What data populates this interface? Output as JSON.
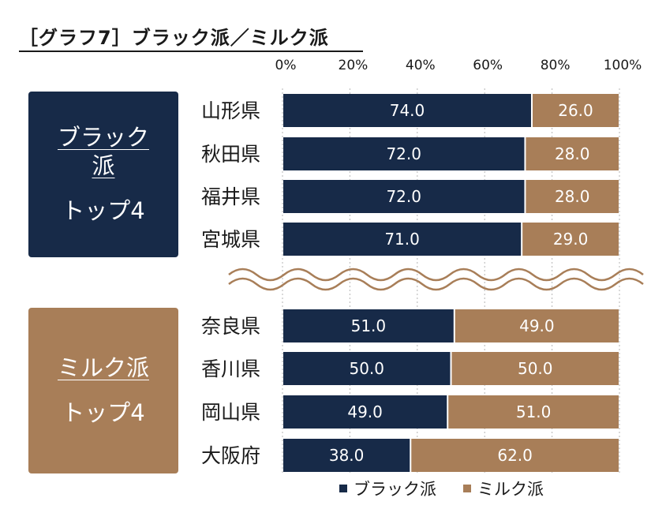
{
  "title": "［グラフ7］ブラック派／ミルク派",
  "boxes": {
    "black": {
      "kind": "ブラック派",
      "top": "トップ4"
    },
    "milk": {
      "kind": "ミルク派",
      "top": "トップ4"
    }
  },
  "colors": {
    "black": "#172a48",
    "milk": "#a87e58"
  },
  "chart_data": {
    "type": "bar",
    "orientation": "horizontal",
    "stacked": true,
    "percent_stacked": true,
    "title": "［グラフ7］ブラック派／ミルク派",
    "xlabel": "",
    "ylabel": "",
    "xlim": [
      0,
      100
    ],
    "x_ticks": [
      "0%",
      "20%",
      "40%",
      "60%",
      "80%",
      "100%"
    ],
    "categories": [
      "山形県",
      "秋田県",
      "福井県",
      "宮城県",
      "奈良県",
      "香川県",
      "岡山県",
      "大阪府"
    ],
    "groups": [
      {
        "label": "ブラック派 トップ4",
        "categories": [
          "山形県",
          "秋田県",
          "福井県",
          "宮城県"
        ]
      },
      {
        "label": "ミルク派 トップ4",
        "categories": [
          "奈良県",
          "香川県",
          "岡山県",
          "大阪府"
        ]
      }
    ],
    "series": [
      {
        "name": "ブラック派",
        "values": [
          74.0,
          72.0,
          72.0,
          71.0,
          51.0,
          50.0,
          49.0,
          38.0
        ],
        "labels": [
          "74.0",
          "72.0",
          "72.0",
          "71.0",
          "51.0",
          "50.0",
          "49.0",
          "38.0"
        ]
      },
      {
        "name": "ミルク派",
        "values": [
          26.0,
          28.0,
          28.0,
          29.0,
          49.0,
          50.0,
          51.0,
          62.0
        ],
        "labels": [
          "26.0",
          "28.0",
          "28.0",
          "29.0",
          "49.0",
          "50.0",
          "51.0",
          "62.0"
        ]
      }
    ],
    "legend": "bottom",
    "grid": true
  }
}
